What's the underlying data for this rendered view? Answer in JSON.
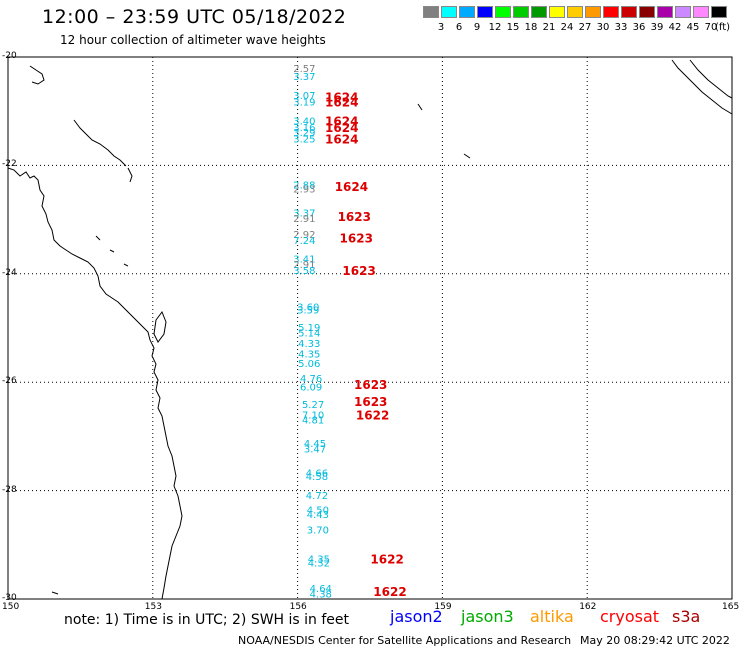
{
  "title": "12:00 – 23:59 UTC 05/18/2022",
  "subtitle": "12 hour collection of altimeter wave heights",
  "colorbar": {
    "colors": [
      "#808080",
      "#00ffff",
      "#00aaff",
      "#0000ff",
      "#00ff00",
      "#00cc00",
      "#009900",
      "#ffff00",
      "#ffcc00",
      "#ff9900",
      "#ff0000",
      "#cc0000",
      "#880000",
      "#aa00aa",
      "#cc88ff",
      "#ff88ff",
      "#000000"
    ],
    "labels": [
      "3",
      "6",
      "9",
      "12",
      "15",
      "18",
      "21",
      "24",
      "27",
      "30",
      "33",
      "36",
      "39",
      "42",
      "45",
      "70"
    ],
    "unit": "(ft)"
  },
  "map": {
    "lat_labels": [
      "-20",
      "-22",
      "-24",
      "-26",
      "-28",
      "-30"
    ],
    "lon_labels": [
      "150",
      "153",
      "156",
      "159",
      "162",
      "165"
    ]
  },
  "observations": [
    {
      "lat": -20.2,
      "lon": 156.2,
      "text": "2.57",
      "color": "#808080"
    },
    {
      "lat": -20.35,
      "lon": 156.2,
      "text": "3.37",
      "color": "#00bbdd"
    },
    {
      "lat": -20.7,
      "lon": 156.2,
      "text": "3.07",
      "color": "#00bbdd"
    },
    {
      "lat": -20.82,
      "lon": 156.2,
      "text": "3.19",
      "color": "#00bbdd"
    },
    {
      "lat": -21.17,
      "lon": 156.2,
      "text": "3.40",
      "color": "#00bbdd"
    },
    {
      "lat": -21.29,
      "lon": 156.2,
      "text": "3.16",
      "color": "#00bbdd"
    },
    {
      "lat": -21.38,
      "lon": 156.2,
      "text": "3.29",
      "color": "#00bbdd"
    },
    {
      "lat": -21.5,
      "lon": 156.2,
      "text": "3.25",
      "color": "#00bbdd"
    },
    {
      "lat": -22.35,
      "lon": 156.2,
      "text": "2.88",
      "color": "#00bbdd"
    },
    {
      "lat": -22.43,
      "lon": 156.2,
      "text": "2.93",
      "color": "#808080"
    },
    {
      "lat": -22.87,
      "lon": 156.2,
      "text": "3.37",
      "color": "#00bbdd"
    },
    {
      "lat": -22.97,
      "lon": 156.2,
      "text": "2.91",
      "color": "#808080"
    },
    {
      "lat": -23.27,
      "lon": 156.2,
      "text": "2.92",
      "color": "#808080"
    },
    {
      "lat": -23.38,
      "lon": 156.2,
      "text": "7.24",
      "color": "#00bbdd"
    },
    {
      "lat": -23.72,
      "lon": 156.2,
      "text": "3.41",
      "color": "#00bbdd"
    },
    {
      "lat": -23.82,
      "lon": 156.2,
      "text": "2.91",
      "color": "#808080"
    },
    {
      "lat": -23.93,
      "lon": 156.2,
      "text": "3.58",
      "color": "#00bbdd"
    },
    {
      "lat": -24.6,
      "lon": 156.28,
      "text": "3.60",
      "color": "#00bbdd"
    },
    {
      "lat": -24.66,
      "lon": 156.28,
      "text": "3.59",
      "color": "#00bbdd"
    },
    {
      "lat": -24.98,
      "lon": 156.3,
      "text": "5.19",
      "color": "#00bbdd"
    },
    {
      "lat": -25.08,
      "lon": 156.3,
      "text": "5.14",
      "color": "#00bbdd"
    },
    {
      "lat": -25.28,
      "lon": 156.3,
      "text": "4.33",
      "color": "#00bbdd"
    },
    {
      "lat": -25.47,
      "lon": 156.3,
      "text": "4.35",
      "color": "#00bbdd"
    },
    {
      "lat": -25.65,
      "lon": 156.3,
      "text": "5.06",
      "color": "#00bbdd"
    },
    {
      "lat": -25.92,
      "lon": 156.34,
      "text": "4.76",
      "color": "#00bbdd"
    },
    {
      "lat": -26.08,
      "lon": 156.34,
      "text": "6.09",
      "color": "#00bbdd"
    },
    {
      "lat": -26.4,
      "lon": 156.38,
      "text": "5.27",
      "color": "#00bbdd"
    },
    {
      "lat": -26.6,
      "lon": 156.38,
      "text": "7.10",
      "color": "#00bbdd"
    },
    {
      "lat": -26.69,
      "lon": 156.38,
      "text": "4.81",
      "color": "#00bbdd"
    },
    {
      "lat": -27.12,
      "lon": 156.42,
      "text": "4.45",
      "color": "#00bbdd"
    },
    {
      "lat": -27.22,
      "lon": 156.42,
      "text": "3.47",
      "color": "#00bbdd"
    },
    {
      "lat": -27.67,
      "lon": 156.46,
      "text": "4.66",
      "color": "#00bbdd"
    },
    {
      "lat": -27.73,
      "lon": 156.46,
      "text": "4.58",
      "color": "#00bbdd"
    },
    {
      "lat": -28.08,
      "lon": 156.46,
      "text": "4.72",
      "color": "#00bbdd"
    },
    {
      "lat": -28.35,
      "lon": 156.48,
      "text": "4.50",
      "color": "#00bbdd"
    },
    {
      "lat": -28.43,
      "lon": 156.48,
      "text": "4.43",
      "color": "#00bbdd"
    },
    {
      "lat": -28.72,
      "lon": 156.48,
      "text": "3.70",
      "color": "#00bbdd"
    },
    {
      "lat": -29.25,
      "lon": 156.5,
      "text": "4.35",
      "color": "#00bbdd"
    },
    {
      "lat": -29.33,
      "lon": 156.5,
      "text": "4.32",
      "color": "#00bbdd"
    },
    {
      "lat": -29.8,
      "lon": 156.54,
      "text": "4.64",
      "color": "#00bbdd"
    },
    {
      "lat": -29.9,
      "lon": 156.54,
      "text": "4.38",
      "color": "#00bbdd"
    }
  ],
  "pass_labels": [
    {
      "lat": -20.73,
      "lon": 156.9,
      "text": "1624"
    },
    {
      "lat": -20.82,
      "lon": 156.9,
      "text": "1624"
    },
    {
      "lat": -21.17,
      "lon": 156.9,
      "text": "1624"
    },
    {
      "lat": -21.29,
      "lon": 156.9,
      "text": "1624"
    },
    {
      "lat": -21.5,
      "lon": 156.9,
      "text": "1624"
    },
    {
      "lat": -22.38,
      "lon": 157.1,
      "text": "1624"
    },
    {
      "lat": -22.93,
      "lon": 157.16,
      "text": "1623"
    },
    {
      "lat": -23.33,
      "lon": 157.2,
      "text": "1623"
    },
    {
      "lat": -23.93,
      "lon": 157.26,
      "text": "1623"
    },
    {
      "lat": -26.03,
      "lon": 157.5,
      "text": "1623"
    },
    {
      "lat": -26.35,
      "lon": 157.5,
      "text": "1623"
    },
    {
      "lat": -26.6,
      "lon": 157.54,
      "text": "1622"
    },
    {
      "lat": -29.25,
      "lon": 157.84,
      "text": "1622"
    },
    {
      "lat": -29.85,
      "lon": 157.9,
      "text": "1622"
    }
  ],
  "footer": {
    "note": "note: 1) Time is in UTC; 2) SWH is in feet",
    "satellites": [
      {
        "name": "jason2",
        "color": "#0000ff"
      },
      {
        "name": "jason3",
        "color": "#00aa00"
      },
      {
        "name": "altika",
        "color": "#ff9900"
      },
      {
        "name": "cryosat",
        "color": "#ff0000"
      },
      {
        "name": "s3a",
        "color": "#aa0000"
      }
    ],
    "credit": "NOAA/NESDIS Center for Satellite Applications and Research",
    "timestamp": "May 20 08:29:42 UTC 2022"
  }
}
